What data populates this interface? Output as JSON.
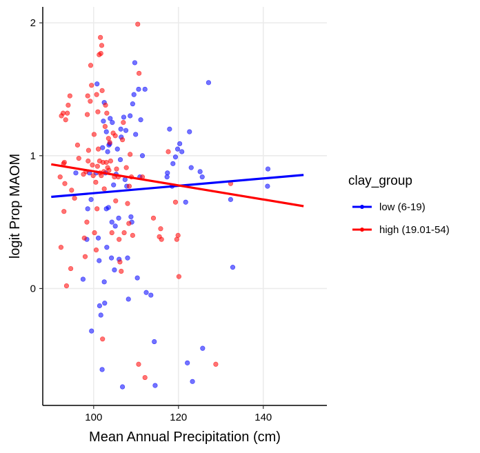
{
  "chart_data": {
    "type": "scatter",
    "xlabel": "Mean Annual Precipitation (cm)",
    "ylabel": "logit Prop MAOM",
    "xlim": [
      88,
      155
    ],
    "ylim": [
      -0.88,
      2.12
    ],
    "xticks": [
      100,
      120,
      140
    ],
    "yticks": [
      0,
      1,
      2
    ],
    "grid": true,
    "legend": {
      "title": "clay_group",
      "placement": "right"
    },
    "series": [
      {
        "name": "low (6-19)",
        "color": "#0000ff",
        "trend": {
          "x": [
            90,
            149.5
          ],
          "y": [
            0.69,
            0.855
          ]
        },
        "points": [
          [
            95.8,
            0.87
          ],
          [
            97.5,
            0.07
          ],
          [
            98.4,
            0.37
          ],
          [
            98.6,
            0.6
          ],
          [
            99.0,
            0.87
          ],
          [
            99.4,
            0.67
          ],
          [
            99.5,
            -0.32
          ],
          [
            100.6,
            0.87
          ],
          [
            100.8,
            1.54
          ],
          [
            101.1,
            0.38
          ],
          [
            101.3,
            0.21
          ],
          [
            101.4,
            -0.13
          ],
          [
            101.7,
            -0.2
          ],
          [
            102.0,
            -0.61
          ],
          [
            102.1,
            1.06
          ],
          [
            102.3,
            1.26
          ],
          [
            102.5,
            0.05
          ],
          [
            102.5,
            1.4
          ],
          [
            102.6,
            -0.11
          ],
          [
            102.8,
            0.87
          ],
          [
            103.0,
            0.6
          ],
          [
            103.0,
            1.18
          ],
          [
            103.1,
            0.31
          ],
          [
            103.3,
            1.03
          ],
          [
            103.5,
            0.61
          ],
          [
            103.6,
            1.08
          ],
          [
            103.8,
            1.09
          ],
          [
            103.9,
            1.28
          ],
          [
            104.2,
            0.23
          ],
          [
            104.3,
            0.5
          ],
          [
            104.4,
            1.25
          ],
          [
            104.7,
            0.78
          ],
          [
            104.9,
            0.14
          ],
          [
            105.1,
            0.47
          ],
          [
            105.3,
            0.86
          ],
          [
            105.6,
            1.05
          ],
          [
            105.9,
            0.53
          ],
          [
            106.0,
            0.22
          ],
          [
            106.3,
            0.97
          ],
          [
            106.4,
            1.2
          ],
          [
            106.5,
            1.14
          ],
          [
            106.8,
            -0.74
          ],
          [
            107.1,
            1.29
          ],
          [
            107.4,
            0.82
          ],
          [
            107.6,
            1.19
          ],
          [
            107.8,
            0.77
          ],
          [
            108.0,
            0.23
          ],
          [
            108.2,
            -0.08
          ],
          [
            108.6,
            1.3
          ],
          [
            108.8,
            0.54
          ],
          [
            109.0,
            0.5
          ],
          [
            109.2,
            1.39
          ],
          [
            109.5,
            1.46
          ],
          [
            109.7,
            1.7
          ],
          [
            109.9,
            1.16
          ],
          [
            110.3,
            0.08
          ],
          [
            110.6,
            1.5
          ],
          [
            110.9,
            0.84
          ],
          [
            111.1,
            1.27
          ],
          [
            111.5,
            1.0
          ],
          [
            112.1,
            1.5
          ],
          [
            112.4,
            -0.03
          ],
          [
            113.5,
            -0.05
          ],
          [
            114.3,
            -0.4
          ],
          [
            114.5,
            -0.73
          ],
          [
            117.3,
            0.84
          ],
          [
            117.4,
            0.87
          ],
          [
            117.9,
            1.2
          ],
          [
            118.5,
            0.77
          ],
          [
            118.7,
            0.94
          ],
          [
            119.3,
            0.99
          ],
          [
            119.8,
            1.05
          ],
          [
            120.3,
            1.09
          ],
          [
            120.8,
            1.03
          ],
          [
            121.7,
            0.65
          ],
          [
            122.1,
            -0.56
          ],
          [
            122.6,
            1.18
          ],
          [
            123.0,
            0.91
          ],
          [
            123.3,
            -0.7
          ],
          [
            125.1,
            0.88
          ],
          [
            125.6,
            0.84
          ],
          [
            125.7,
            -0.45
          ],
          [
            127.1,
            1.55
          ],
          [
            132.3,
            0.67
          ],
          [
            132.8,
            0.16
          ],
          [
            141.0,
            0.77
          ],
          [
            141.1,
            0.9
          ]
        ]
      },
      {
        "name": "high (19.01-54)",
        "color": "#ff0000",
        "trend": {
          "x": [
            90,
            149.5
          ],
          "y": [
            0.935,
            0.62
          ]
        },
        "points": [
          [
            92.1,
            0.84
          ],
          [
            92.3,
            0.31
          ],
          [
            92.4,
            1.3
          ],
          [
            92.8,
            1.32
          ],
          [
            92.9,
            0.94
          ],
          [
            93.0,
            0.58
          ],
          [
            93.1,
            0.95
          ],
          [
            93.2,
            0.79
          ],
          [
            93.4,
            1.27
          ],
          [
            93.6,
            0.02
          ],
          [
            93.8,
            1.32
          ],
          [
            94.0,
            1.38
          ],
          [
            94.4,
            1.45
          ],
          [
            94.6,
            0.15
          ],
          [
            94.8,
            0.74
          ],
          [
            95.5,
            0.68
          ],
          [
            96.2,
            1.08
          ],
          [
            96.5,
            0.98
          ],
          [
            97.6,
            0.86
          ],
          [
            97.8,
            0.38
          ],
          [
            98.0,
            0.24
          ],
          [
            98.2,
            0.88
          ],
          [
            98.4,
            0.5
          ],
          [
            98.5,
            1.31
          ],
          [
            98.6,
            1.45
          ],
          [
            98.7,
            0.96
          ],
          [
            98.8,
            1.04
          ],
          [
            99.2,
            1.41
          ],
          [
            99.3,
            1.68
          ],
          [
            99.5,
            1.53
          ],
          [
            99.7,
            0.93
          ],
          [
            99.9,
            0.85
          ],
          [
            100.1,
            1.16
          ],
          [
            100.2,
            0.42
          ],
          [
            100.5,
            0.8
          ],
          [
            100.6,
            0.29
          ],
          [
            100.7,
            1.46
          ],
          [
            100.8,
            0.6
          ],
          [
            100.9,
            0.92
          ],
          [
            101.0,
            1.33
          ],
          [
            101.1,
            1.05
          ],
          [
            101.3,
            1.76
          ],
          [
            101.4,
            0.96
          ],
          [
            101.5,
            0.87
          ],
          [
            101.6,
            1.89
          ],
          [
            101.7,
            1.77
          ],
          [
            101.8,
            0.85
          ],
          [
            101.9,
            1.83
          ],
          [
            102.0,
            1.49
          ],
          [
            102.1,
            -0.38
          ],
          [
            102.2,
            0.95
          ],
          [
            102.4,
            0.88
          ],
          [
            102.5,
            0.75
          ],
          [
            102.7,
            1.22
          ],
          [
            102.8,
            1.38
          ],
          [
            103.0,
            0.95
          ],
          [
            103.1,
            1.32
          ],
          [
            103.3,
            0.91
          ],
          [
            103.5,
            1.13
          ],
          [
            103.6,
            0.89
          ],
          [
            103.8,
            1.1
          ],
          [
            104.0,
            0.96
          ],
          [
            104.3,
            0.42
          ],
          [
            104.6,
            1.17
          ],
          [
            104.9,
            0.84
          ],
          [
            105.1,
            1.15
          ],
          [
            105.2,
            0.66
          ],
          [
            105.4,
            0.9
          ],
          [
            105.8,
            0.84
          ],
          [
            106.0,
            0.37
          ],
          [
            106.2,
            0.2
          ],
          [
            106.5,
            0.13
          ],
          [
            106.8,
            1.12
          ],
          [
            107.0,
            1.25
          ],
          [
            107.2,
            0.42
          ],
          [
            107.7,
            0.91
          ],
          [
            108.0,
            0.64
          ],
          [
            108.3,
            0.49
          ],
          [
            108.4,
            0.77
          ],
          [
            108.6,
            1.01
          ],
          [
            108.9,
            0.84
          ],
          [
            109.2,
            0.4
          ],
          [
            110.4,
            1.99
          ],
          [
            110.7,
            1.62
          ],
          [
            110.6,
            -0.57
          ],
          [
            111.5,
            0.84
          ],
          [
            112.1,
            -0.67
          ],
          [
            114.1,
            0.53
          ],
          [
            115.5,
            0.39
          ],
          [
            115.8,
            0.45
          ],
          [
            116.0,
            0.37
          ],
          [
            117.6,
            1.03
          ],
          [
            119.3,
            0.65
          ],
          [
            119.6,
            0.37
          ],
          [
            119.9,
            0.4
          ],
          [
            120.1,
            0.09
          ],
          [
            128.8,
            -0.57
          ],
          [
            132.3,
            0.79
          ]
        ]
      }
    ]
  }
}
